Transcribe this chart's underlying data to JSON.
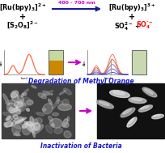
{
  "bg_color": "#ffffff",
  "title_color": "#1a1acc",
  "arrow_color": "#cc00cc",
  "reaction_arrow_color": "#1a1a99",
  "wavelength_color": "#cc00cc",
  "wavelength_label": "400 - 700 nm",
  "degradation_title": "Degradation of Methyl Orange",
  "inactivation_title": "Inactivation of Bacteria",
  "vial_left_color": "#cc8800",
  "vial_left_bg": "#c8d8a0",
  "vial_right_color": "#c8d8b0",
  "spec_orange": "#FF6644",
  "spec_blue1": "#4444bb",
  "spec_blue2": "#6666cc",
  "spec_blue3": "#8888cc",
  "spec_blue4": "#aaaadd",
  "spec_blue5": "#cc6644"
}
